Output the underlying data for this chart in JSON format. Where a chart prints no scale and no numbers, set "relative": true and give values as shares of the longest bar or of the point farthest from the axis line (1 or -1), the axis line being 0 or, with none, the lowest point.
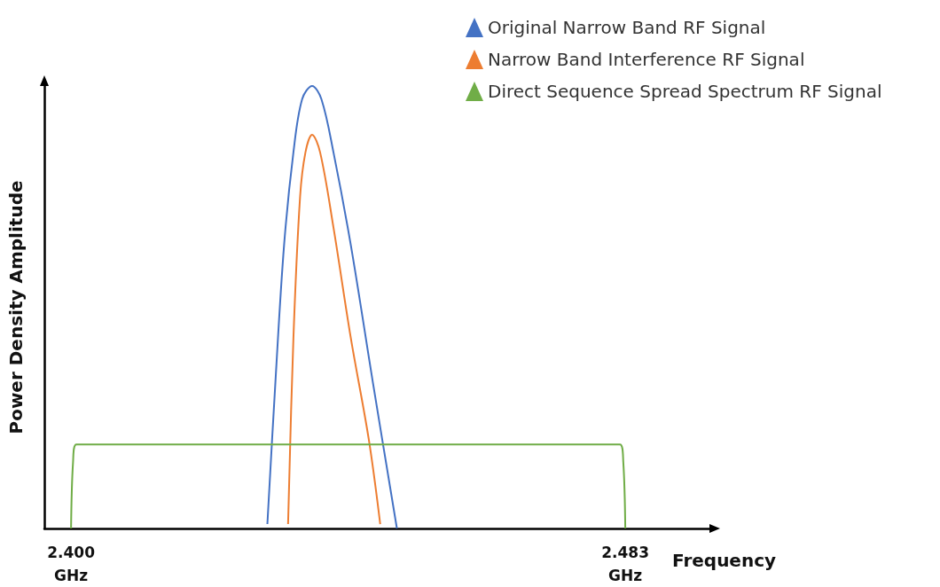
{
  "chart_data": {
    "type": "line",
    "xlabel": "Frequency",
    "ylabel": "Power Density Amplitude",
    "relative": true,
    "legend": "top right",
    "marker": "none",
    "line_style": "solid",
    "grid": false,
    "xlim": [
      2.396,
      2.4956
    ],
    "xticks": [
      {
        "value": 2.4,
        "label": "2.400\nGHz"
      },
      {
        "value": 2.483,
        "label": "2.483\nGHz"
      }
    ],
    "series": [
      {
        "name": "Original Narrow Band RF Signal",
        "color": "#4472c4",
        "x": [
          2.4294,
          2.4306,
          2.4319,
          2.4333,
          2.4346,
          2.4361,
          2.4375,
          2.4393,
          2.4419,
          2.4452,
          2.4488
        ],
        "values": [
          0.01,
          0.33,
          0.64,
          0.85,
          0.97,
          1,
          0.97,
          0.85,
          0.64,
          0.33,
          0
        ]
      },
      {
        "name": "Narrow Band Interference RF Signal",
        "color": "#ed7d31",
        "x": [
          2.4325,
          2.4333,
          2.4343,
          2.4351,
          2.4361,
          2.4373,
          2.4393,
          2.4419,
          2.4446,
          2.4463
        ],
        "values": [
          0.01,
          0.43,
          0.75,
          0.85,
          0.89,
          0.85,
          0.68,
          0.43,
          0.2,
          0.01
        ]
      },
      {
        "name": "Direct Sequence Spread Spectrum RF Signal",
        "color": "#70ad47",
        "x": [
          2.4,
          2.4003,
          2.4008,
          2.4822,
          2.4827,
          2.483
        ],
        "values": [
          0,
          0.15,
          0.19,
          0.19,
          0.15,
          0
        ]
      }
    ]
  }
}
